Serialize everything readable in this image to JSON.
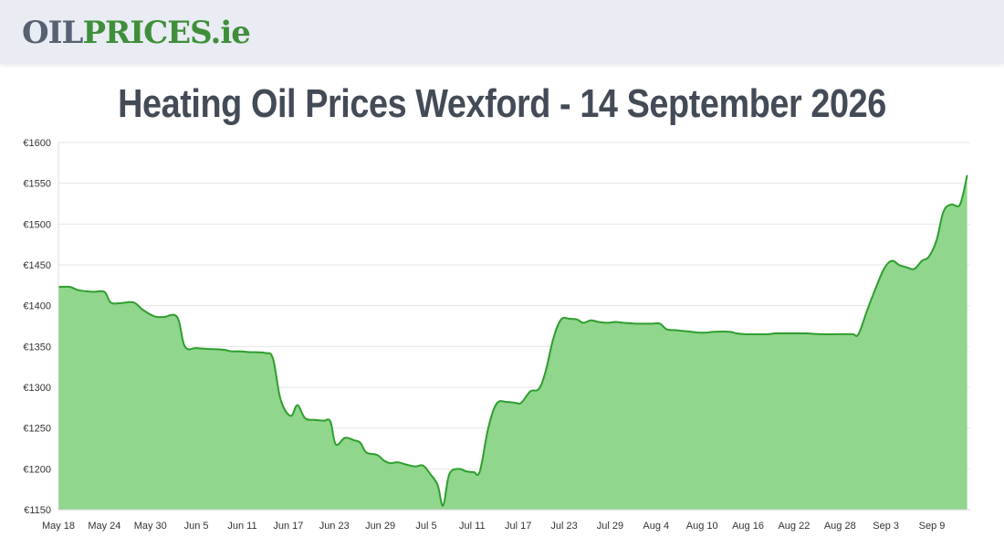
{
  "header": {
    "logo_oil": "OIL",
    "logo_prices": "PRICES",
    "logo_tld": ".ie"
  },
  "page": {
    "title": "Heating Oil Prices Wexford - 14 September 2026"
  },
  "colors": {
    "header_bg": "#e9ecf3",
    "logo_grey": "#566272",
    "logo_green": "#3f8f3a",
    "line": "#2e9e2e",
    "area": "#90d68c",
    "title": "#434b57"
  },
  "chart_data": {
    "type": "area",
    "title": "",
    "xlabel": "",
    "ylabel": "",
    "ylim": [
      1150,
      1600
    ],
    "y_ticks": [
      "€1150",
      "€1200",
      "€1250",
      "€1300",
      "€1350",
      "€1400",
      "€1450",
      "€1500",
      "€1550",
      "€1600"
    ],
    "y_tick_values": [
      1150,
      1200,
      1250,
      1300,
      1350,
      1400,
      1450,
      1500,
      1550,
      1600
    ],
    "x_ticks": [
      {
        "label": "May 18",
        "day": 0
      },
      {
        "label": "May 24",
        "day": 6
      },
      {
        "label": "May 30",
        "day": 12
      },
      {
        "label": "Jun 5",
        "day": 18
      },
      {
        "label": "Jun 11",
        "day": 24
      },
      {
        "label": "Jun 17",
        "day": 30
      },
      {
        "label": "Jun 23",
        "day": 36
      },
      {
        "label": "Jun 29",
        "day": 42
      },
      {
        "label": "Jul 5",
        "day": 48
      },
      {
        "label": "Jul 11",
        "day": 54
      },
      {
        "label": "Jul 17",
        "day": 60
      },
      {
        "label": "Jul 23",
        "day": 66
      },
      {
        "label": "Jul 29",
        "day": 72
      },
      {
        "label": "Aug 4",
        "day": 78
      },
      {
        "label": "Aug 10",
        "day": 84
      },
      {
        "label": "Aug 16",
        "day": 90
      },
      {
        "label": "Aug 22",
        "day": 96
      },
      {
        "label": "Aug 28",
        "day": 102
      },
      {
        "label": "Sep 3",
        "day": 108
      },
      {
        "label": "Sep 9",
        "day": 114
      }
    ],
    "x_range": [
      0,
      119
    ],
    "grid": true,
    "legend": "none",
    "series": [
      {
        "points": [
          [
            0,
            1423
          ],
          [
            1.5,
            1423
          ],
          [
            2.6,
            1419
          ],
          [
            4.5,
            1417
          ],
          [
            6,
            1417
          ],
          [
            6.8,
            1404
          ],
          [
            8,
            1403
          ],
          [
            9.8,
            1404
          ],
          [
            11,
            1395
          ],
          [
            12.5,
            1387
          ],
          [
            13.7,
            1386
          ],
          [
            15.5,
            1386
          ],
          [
            16.5,
            1350
          ],
          [
            18,
            1348
          ],
          [
            19.5,
            1347
          ],
          [
            21.5,
            1346
          ],
          [
            22.6,
            1344
          ],
          [
            23.8,
            1344
          ],
          [
            25,
            1343
          ],
          [
            27,
            1342
          ],
          [
            28,
            1335
          ],
          [
            29,
            1285
          ],
          [
            30.3,
            1265
          ],
          [
            31.2,
            1278
          ],
          [
            32.2,
            1262
          ],
          [
            33.5,
            1260
          ],
          [
            34.6,
            1259
          ],
          [
            35.5,
            1258
          ],
          [
            36.2,
            1230
          ],
          [
            37.4,
            1238
          ],
          [
            38.6,
            1235
          ],
          [
            39.4,
            1232
          ],
          [
            40.2,
            1220
          ],
          [
            41.6,
            1217
          ],
          [
            42.5,
            1210
          ],
          [
            43.3,
            1207
          ],
          [
            44.3,
            1208
          ],
          [
            45.5,
            1205
          ],
          [
            46.6,
            1203
          ],
          [
            47.6,
            1204
          ],
          [
            48.5,
            1194
          ],
          [
            49.5,
            1180
          ],
          [
            50.2,
            1155
          ],
          [
            51,
            1193
          ],
          [
            52.2,
            1200
          ],
          [
            53.2,
            1197
          ],
          [
            54.2,
            1196
          ],
          [
            55,
            1197
          ],
          [
            56.1,
            1250
          ],
          [
            57.2,
            1280
          ],
          [
            58.5,
            1282
          ],
          [
            59.6,
            1281
          ],
          [
            60.4,
            1281
          ],
          [
            61.6,
            1295
          ],
          [
            62.7,
            1298
          ],
          [
            63.6,
            1320
          ],
          [
            64.6,
            1360
          ],
          [
            65.6,
            1383
          ],
          [
            66.7,
            1384
          ],
          [
            67.7,
            1383
          ],
          [
            68.5,
            1379
          ],
          [
            69.5,
            1382
          ],
          [
            70.5,
            1380
          ],
          [
            71.6,
            1379
          ],
          [
            72.7,
            1380
          ],
          [
            73.7,
            1379
          ],
          [
            75.5,
            1378
          ],
          [
            77.5,
            1378
          ],
          [
            78.5,
            1378
          ],
          [
            79.4,
            1371
          ],
          [
            80.6,
            1370
          ],
          [
            81.5,
            1369
          ],
          [
            82.6,
            1368
          ],
          [
            83.5,
            1367
          ],
          [
            84.6,
            1367
          ],
          [
            85.6,
            1368
          ],
          [
            87.6,
            1368
          ],
          [
            88.5,
            1366
          ],
          [
            89.6,
            1365
          ],
          [
            90.6,
            1365
          ],
          [
            92.6,
            1365
          ],
          [
            93.6,
            1366
          ],
          [
            95.6,
            1366
          ],
          [
            97.6,
            1366
          ],
          [
            99.5,
            1365
          ],
          [
            101.6,
            1365
          ],
          [
            103.6,
            1365
          ],
          [
            104.4,
            1365
          ],
          [
            105.5,
            1393
          ],
          [
            106.6,
            1420
          ],
          [
            107.8,
            1446
          ],
          [
            108.8,
            1455
          ],
          [
            109.7,
            1450
          ],
          [
            110.7,
            1447
          ],
          [
            111.7,
            1445
          ],
          [
            112.7,
            1455
          ],
          [
            113.6,
            1460
          ],
          [
            114.6,
            1480
          ],
          [
            115.5,
            1515
          ],
          [
            116.5,
            1524
          ],
          [
            117.5,
            1522
          ],
          [
            118,
            1534
          ],
          [
            118.6,
            1560
          ]
        ]
      }
    ]
  }
}
